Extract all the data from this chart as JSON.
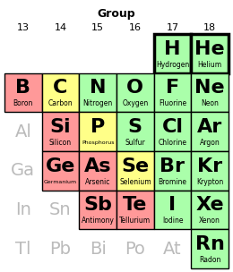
{
  "title": "Group",
  "col_labels": [
    "13",
    "14",
    "15",
    "16",
    "17",
    "18"
  ],
  "figsize": [
    2.6,
    3.04
  ],
  "dpi": 100,
  "bg_color": "#ffffff",
  "colors": {
    "green": "#aaffaa",
    "pink": "#ff9999",
    "yellow": "#ffff88",
    "gray_text": "#bbbbbb",
    "white": "#ffffff"
  },
  "rows": [
    {
      "row_idx": 0,
      "cells": [
        {
          "col": 4,
          "symbol": "H",
          "name": "Hydrogen",
          "color": "green",
          "thick_border": true,
          "sym_size": 16,
          "name_size": 5.5
        },
        {
          "col": 5,
          "symbol": "He",
          "name": "Helium",
          "color": "green",
          "thick_border": true,
          "sym_size": 16,
          "name_size": 5.5
        }
      ]
    },
    {
      "row_idx": 1,
      "cells": [
        {
          "col": 0,
          "symbol": "B",
          "name": "Boron",
          "color": "pink",
          "thick_border": false,
          "sym_size": 16,
          "name_size": 5.5
        },
        {
          "col": 1,
          "symbol": "C",
          "name": "Carbon",
          "color": "yellow",
          "thick_border": false,
          "sym_size": 16,
          "name_size": 5.5
        },
        {
          "col": 2,
          "symbol": "N",
          "name": "Nitrogen",
          "color": "green",
          "thick_border": false,
          "sym_size": 16,
          "name_size": 5.5
        },
        {
          "col": 3,
          "symbol": "O",
          "name": "Oxygen",
          "color": "green",
          "thick_border": false,
          "sym_size": 16,
          "name_size": 5.5
        },
        {
          "col": 4,
          "symbol": "F",
          "name": "Fluorine",
          "color": "green",
          "thick_border": false,
          "sym_size": 16,
          "name_size": 5.5
        },
        {
          "col": 5,
          "symbol": "Ne",
          "name": "Neon",
          "color": "green",
          "thick_border": false,
          "sym_size": 16,
          "name_size": 5.5
        }
      ]
    },
    {
      "row_idx": 2,
      "cells": [
        {
          "col": 0,
          "symbol": "Al",
          "name": "",
          "color": "none",
          "thick_border": false,
          "sym_size": 14,
          "name_size": 5.5
        },
        {
          "col": 1,
          "symbol": "Si",
          "name": "Silicon",
          "color": "pink",
          "thick_border": false,
          "sym_size": 16,
          "name_size": 5.5
        },
        {
          "col": 2,
          "symbol": "P",
          "name": "Phosphorus",
          "color": "yellow",
          "thick_border": false,
          "sym_size": 16,
          "name_size": 4.5
        },
        {
          "col": 3,
          "symbol": "S",
          "name": "Sulfur",
          "color": "green",
          "thick_border": false,
          "sym_size": 16,
          "name_size": 5.5
        },
        {
          "col": 4,
          "symbol": "Cl",
          "name": "Chlorine",
          "color": "green",
          "thick_border": false,
          "sym_size": 16,
          "name_size": 5.5
        },
        {
          "col": 5,
          "symbol": "Ar",
          "name": "Argon",
          "color": "green",
          "thick_border": false,
          "sym_size": 16,
          "name_size": 5.5
        }
      ]
    },
    {
      "row_idx": 3,
      "cells": [
        {
          "col": 0,
          "symbol": "Ga",
          "name": "",
          "color": "none",
          "thick_border": false,
          "sym_size": 14,
          "name_size": 5.5
        },
        {
          "col": 1,
          "symbol": "Ge",
          "name": "Germanium",
          "color": "pink",
          "thick_border": false,
          "sym_size": 16,
          "name_size": 4.5
        },
        {
          "col": 2,
          "symbol": "As",
          "name": "Arsenic",
          "color": "pink",
          "thick_border": false,
          "sym_size": 16,
          "name_size": 5.5
        },
        {
          "col": 3,
          "symbol": "Se",
          "name": "Selenium",
          "color": "yellow",
          "thick_border": false,
          "sym_size": 16,
          "name_size": 5.5
        },
        {
          "col": 4,
          "symbol": "Br",
          "name": "Bromine",
          "color": "green",
          "thick_border": false,
          "sym_size": 16,
          "name_size": 5.5
        },
        {
          "col": 5,
          "symbol": "Kr",
          "name": "Krypton",
          "color": "green",
          "thick_border": false,
          "sym_size": 16,
          "name_size": 5.5
        }
      ]
    },
    {
      "row_idx": 4,
      "cells": [
        {
          "col": 0,
          "symbol": "In",
          "name": "",
          "color": "none",
          "thick_border": false,
          "sym_size": 14,
          "name_size": 5.5
        },
        {
          "col": 1,
          "symbol": "Sn",
          "name": "",
          "color": "none",
          "thick_border": false,
          "sym_size": 14,
          "name_size": 5.5
        },
        {
          "col": 2,
          "symbol": "Sb",
          "name": "Antimony",
          "color": "pink",
          "thick_border": false,
          "sym_size": 16,
          "name_size": 5.5
        },
        {
          "col": 3,
          "symbol": "Te",
          "name": "Tellurium",
          "color": "pink",
          "thick_border": false,
          "sym_size": 16,
          "name_size": 5.5
        },
        {
          "col": 4,
          "symbol": "I",
          "name": "Iodine",
          "color": "green",
          "thick_border": false,
          "sym_size": 16,
          "name_size": 5.5
        },
        {
          "col": 5,
          "symbol": "Xe",
          "name": "Xenon",
          "color": "green",
          "thick_border": false,
          "sym_size": 16,
          "name_size": 5.5
        }
      ]
    },
    {
      "row_idx": 5,
      "cells": [
        {
          "col": 0,
          "symbol": "Tl",
          "name": "",
          "color": "none",
          "thick_border": false,
          "sym_size": 14,
          "name_size": 5.5
        },
        {
          "col": 1,
          "symbol": "Pb",
          "name": "",
          "color": "none",
          "thick_border": false,
          "sym_size": 14,
          "name_size": 5.5
        },
        {
          "col": 2,
          "symbol": "Bi",
          "name": "",
          "color": "none",
          "thick_border": false,
          "sym_size": 14,
          "name_size": 5.5
        },
        {
          "col": 3,
          "symbol": "Po",
          "name": "",
          "color": "none",
          "thick_border": false,
          "sym_size": 14,
          "name_size": 5.5
        },
        {
          "col": 4,
          "symbol": "At",
          "name": "",
          "color": "none",
          "thick_border": false,
          "sym_size": 14,
          "name_size": 5.5
        },
        {
          "col": 5,
          "symbol": "Rn",
          "name": "Radon",
          "color": "green",
          "thick_border": false,
          "sym_size": 16,
          "name_size": 5.5
        }
      ]
    }
  ]
}
